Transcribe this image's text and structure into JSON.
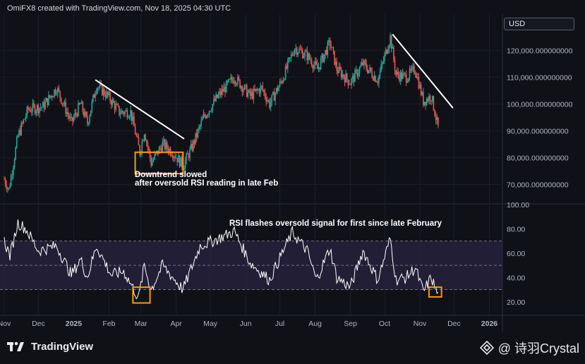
{
  "header": {
    "attribution": "OmiFX8 created with TradingView.com, Nov 18, 2025 04:30 UTC"
  },
  "currency_badge": "USD",
  "footer": {
    "brand": "TradingView",
    "watermark_text": "@ 诗羽Crystal"
  },
  "colors": {
    "up": "#26a69a",
    "down": "#ef5350",
    "trendline": "#ffffff",
    "highlight_box": "#ff9800",
    "rsi_line": "#ffffff",
    "rsi_band": "#2a2340"
  },
  "chart_data": [
    {
      "type": "candlestick",
      "title": "",
      "price_axis_labels": [
        "120,000.000000000",
        "110,000.000000000",
        "100,000.000000000",
        "90,000.000000000",
        "80,000.000000000",
        "70,000.000000000"
      ],
      "price_axis_values": [
        120000,
        110000,
        100000,
        90000,
        80000,
        70000
      ],
      "ylim": [
        63000,
        133000
      ],
      "x_range": [
        "2024-11-01",
        "2026-01-10"
      ],
      "anchors": [
        {
          "d": "2024-11-01",
          "p": 72000
        },
        {
          "d": "2024-11-05",
          "p": 68000
        },
        {
          "d": "2024-11-13",
          "p": 88000
        },
        {
          "d": "2024-11-22",
          "p": 98000
        },
        {
          "d": "2024-12-05",
          "p": 99000
        },
        {
          "d": "2024-12-17",
          "p": 106000
        },
        {
          "d": "2024-12-30",
          "p": 93000
        },
        {
          "d": "2025-01-07",
          "p": 100000
        },
        {
          "d": "2025-01-13",
          "p": 93000
        },
        {
          "d": "2025-01-21",
          "p": 107000
        },
        {
          "d": "2025-01-31",
          "p": 103000
        },
        {
          "d": "2025-02-10",
          "p": 97000
        },
        {
          "d": "2025-02-20",
          "p": 97000
        },
        {
          "d": "2025-02-28",
          "p": 82000
        },
        {
          "d": "2025-03-04",
          "p": 90000
        },
        {
          "d": "2025-03-10",
          "p": 78000
        },
        {
          "d": "2025-03-20",
          "p": 85000
        },
        {
          "d": "2025-03-29",
          "p": 82000
        },
        {
          "d": "2025-04-07",
          "p": 77000
        },
        {
          "d": "2025-04-15",
          "p": 84000
        },
        {
          "d": "2025-04-25",
          "p": 95000
        },
        {
          "d": "2025-05-08",
          "p": 103000
        },
        {
          "d": "2025-05-22",
          "p": 110000
        },
        {
          "d": "2025-06-05",
          "p": 103000
        },
        {
          "d": "2025-06-15",
          "p": 106000
        },
        {
          "d": "2025-06-22",
          "p": 100000
        },
        {
          "d": "2025-07-03",
          "p": 109000
        },
        {
          "d": "2025-07-14",
          "p": 121000
        },
        {
          "d": "2025-07-25",
          "p": 118000
        },
        {
          "d": "2025-08-03",
          "p": 113000
        },
        {
          "d": "2025-08-14",
          "p": 123000
        },
        {
          "d": "2025-08-20",
          "p": 113000
        },
        {
          "d": "2025-09-01",
          "p": 108000
        },
        {
          "d": "2025-09-12",
          "p": 115000
        },
        {
          "d": "2025-09-25",
          "p": 109000
        },
        {
          "d": "2025-10-06",
          "p": 125000
        },
        {
          "d": "2025-10-11",
          "p": 111000
        },
        {
          "d": "2025-10-20",
          "p": 110000
        },
        {
          "d": "2025-10-28",
          "p": 113000
        },
        {
          "d": "2025-11-04",
          "p": 101000
        },
        {
          "d": "2025-11-11",
          "p": 103000
        },
        {
          "d": "2025-11-17",
          "p": 91000
        }
      ],
      "trendlines": [
        {
          "from": {
            "d": "2025-01-20",
            "p": 109000
          },
          "to": {
            "d": "2025-04-08",
            "p": 87000
          }
        },
        {
          "from": {
            "d": "2025-10-08",
            "p": 126000
          },
          "to": {
            "d": "2025-11-30",
            "p": 98500
          }
        }
      ],
      "highlight_boxes": [
        {
          "from": {
            "d": "2025-02-24",
            "p": 82000
          },
          "to": {
            "d": "2025-04-07",
            "p": 74000
          }
        }
      ],
      "annotation": {
        "line1": "Downtrend slowed",
        "line2": "after oversold RSI reading in late Feb"
      }
    },
    {
      "type": "line",
      "title": "",
      "name": "RSI",
      "ylim": [
        10,
        100
      ],
      "rsi_axis_labels": [
        "100.00",
        "80.00",
        "60.00",
        "40.00",
        "20.00"
      ],
      "rsi_axis_values": [
        100,
        80,
        60,
        40,
        20
      ],
      "band": [
        30,
        70
      ],
      "midline": 50,
      "anchors": [
        {
          "d": "2024-11-01",
          "p": 70
        },
        {
          "d": "2024-11-06",
          "p": 58
        },
        {
          "d": "2024-11-13",
          "p": 85
        },
        {
          "d": "2024-11-20",
          "p": 80
        },
        {
          "d": "2024-12-01",
          "p": 62
        },
        {
          "d": "2024-12-17",
          "p": 66
        },
        {
          "d": "2024-12-30",
          "p": 42
        },
        {
          "d": "2025-01-07",
          "p": 55
        },
        {
          "d": "2025-01-13",
          "p": 40
        },
        {
          "d": "2025-01-21",
          "p": 66
        },
        {
          "d": "2025-02-03",
          "p": 42
        },
        {
          "d": "2025-02-14",
          "p": 45
        },
        {
          "d": "2025-02-27",
          "p": 23
        },
        {
          "d": "2025-03-04",
          "p": 50
        },
        {
          "d": "2025-03-10",
          "p": 30
        },
        {
          "d": "2025-03-20",
          "p": 50
        },
        {
          "d": "2025-04-07",
          "p": 30
        },
        {
          "d": "2025-04-22",
          "p": 66
        },
        {
          "d": "2025-05-08",
          "p": 72
        },
        {
          "d": "2025-05-22",
          "p": 78
        },
        {
          "d": "2025-06-05",
          "p": 52
        },
        {
          "d": "2025-06-22",
          "p": 38
        },
        {
          "d": "2025-07-03",
          "p": 60
        },
        {
          "d": "2025-07-12",
          "p": 77
        },
        {
          "d": "2025-07-25",
          "p": 62
        },
        {
          "d": "2025-08-02",
          "p": 38
        },
        {
          "d": "2025-08-14",
          "p": 64
        },
        {
          "d": "2025-08-20",
          "p": 40
        },
        {
          "d": "2025-09-01",
          "p": 32
        },
        {
          "d": "2025-09-12",
          "p": 62
        },
        {
          "d": "2025-09-25",
          "p": 38
        },
        {
          "d": "2025-10-06",
          "p": 72
        },
        {
          "d": "2025-10-11",
          "p": 38
        },
        {
          "d": "2025-10-20",
          "p": 40
        },
        {
          "d": "2025-10-28",
          "p": 48
        },
        {
          "d": "2025-11-04",
          "p": 28
        },
        {
          "d": "2025-11-11",
          "p": 40
        },
        {
          "d": "2025-11-17",
          "p": 25
        }
      ],
      "highlight_boxes": [
        {
          "from": {
            "d": "2025-02-22",
            "p": 32
          },
          "to": {
            "d": "2025-03-09",
            "p": 19
          }
        },
        {
          "from": {
            "d": "2025-11-09",
            "p": 32
          },
          "to": {
            "d": "2025-11-20",
            "p": 24
          }
        }
      ],
      "annotation": "RSI flashes oversold signal for first since late February"
    }
  ],
  "time_axis": [
    {
      "label": "Nov",
      "d": "2024-11-01"
    },
    {
      "label": "Dec",
      "d": "2024-12-01"
    },
    {
      "label": "2025",
      "d": "2025-01-01"
    },
    {
      "label": "Feb",
      "d": "2025-02-01"
    },
    {
      "label": "Mar",
      "d": "2025-03-01"
    },
    {
      "label": "Apr",
      "d": "2025-04-01"
    },
    {
      "label": "May",
      "d": "2025-05-01"
    },
    {
      "label": "Jun",
      "d": "2025-06-01"
    },
    {
      "label": "Jul",
      "d": "2025-07-01"
    },
    {
      "label": "Aug",
      "d": "2025-08-01"
    },
    {
      "label": "Sep",
      "d": "2025-09-01"
    },
    {
      "label": "Oct",
      "d": "2025-10-01"
    },
    {
      "label": "Nov",
      "d": "2025-11-01"
    },
    {
      "label": "Dec",
      "d": "2025-12-01"
    },
    {
      "label": "2026",
      "d": "2026-01-01"
    }
  ]
}
